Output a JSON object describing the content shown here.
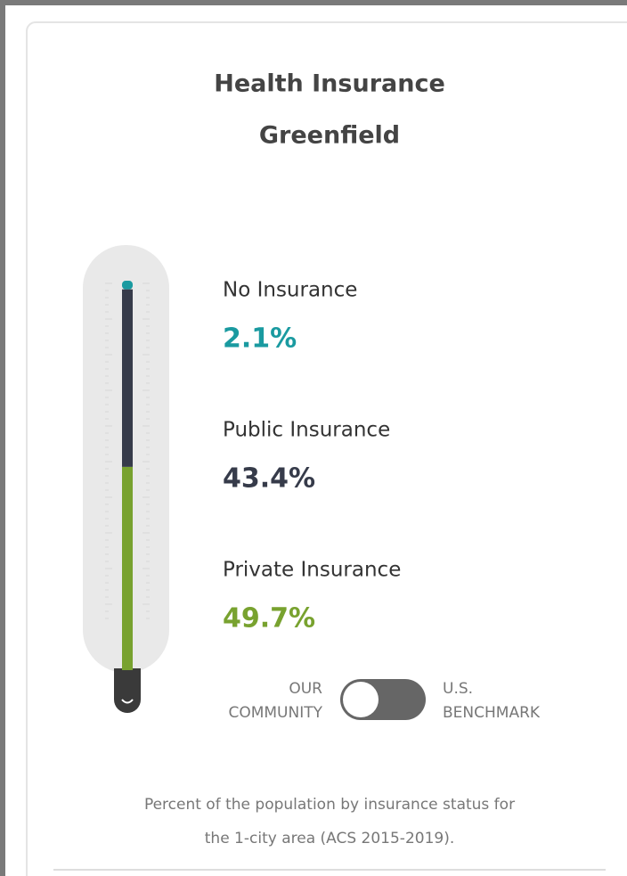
{
  "chart_data": {
    "type": "thermometer",
    "title": "Health Insurance",
    "subtitle": "Greenfield",
    "categories": [
      "No Insurance",
      "Public Insurance",
      "Private Insurance"
    ],
    "values": [
      2.1,
      43.4,
      49.7
    ],
    "value_labels": [
      "2.1%",
      "43.4%",
      "49.7%"
    ],
    "colors": [
      "#1a9aa0",
      "#363b4a",
      "#78a22f"
    ],
    "ylim": [
      0,
      100
    ]
  },
  "toggle": {
    "left": [
      "OUR",
      "COMMUNITY"
    ],
    "right": [
      "U.S.",
      "BENCHMARK"
    ]
  },
  "note": [
    "Percent of the population by insurance status for",
    "the 1-city area (ACS 2015-2019)."
  ]
}
